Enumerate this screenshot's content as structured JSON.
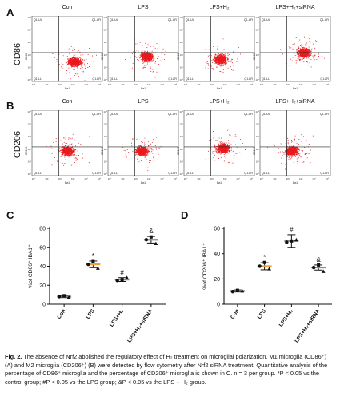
{
  "panels": {
    "A": {
      "letter": "A",
      "row_label": "CD86",
      "y_axis": "CD86"
    },
    "B": {
      "letter": "B",
      "row_label": "CD206",
      "y_axis": "CD206"
    },
    "C": {
      "letter": "C"
    },
    "D": {
      "letter": "D"
    }
  },
  "column_titles": [
    "Con",
    "LPS",
    "LPS+H₂",
    "LPS+H₂+siRNA"
  ],
  "flow": {
    "x_axis_label": "Iba1",
    "quadrants": [
      "Q1-UL",
      "Q1-UR",
      "Q1-LL",
      "Q1-LR"
    ],
    "tick_labels": [
      "10⁵",
      "10⁴",
      "10³",
      "10²",
      "10¹",
      "10⁰"
    ],
    "dot_color": "#e8191e"
  },
  "chart_data": [
    {
      "type": "scatter",
      "panel": "C",
      "ylabel": "%of CD86⁺ IBA1⁺",
      "ylim": [
        0,
        80
      ],
      "yticks": [
        "0",
        "20",
        "40",
        "60",
        "80"
      ],
      "categories": [
        "Con",
        "LPS",
        "LPS+H₂",
        "LPS+H₂+siRNA"
      ],
      "points": [
        [
          8,
          9,
          7.5
        ],
        [
          42,
          45,
          38
        ],
        [
          25,
          26,
          28
        ],
        [
          68,
          71,
          64
        ]
      ],
      "means": [
        8,
        42,
        26,
        68
      ],
      "sd": [
        1,
        3.5,
        2,
        3.5
      ],
      "annotations": [
        "",
        "*",
        "#",
        "&"
      ],
      "colors": [
        "#8a8a8a",
        "#e8a13a",
        "#8a8a8a",
        "#8a8a8a"
      ]
    },
    {
      "type": "scatter",
      "panel": "D",
      "ylabel": "%of CD206⁺ IBA1⁺",
      "ylim": [
        0,
        60
      ],
      "yticks": [
        "0",
        "20",
        "40",
        "60"
      ],
      "categories": [
        "Con",
        "LPS",
        "LPS+H₂",
        "LPS+H₂+siRNA"
      ],
      "points": [
        [
          10,
          11,
          10.5
        ],
        [
          30,
          33,
          28
        ],
        [
          49,
          50,
          51
        ],
        [
          29,
          31,
          26
        ]
      ],
      "means": [
        10.5,
        30,
        50,
        29
      ],
      "sd": [
        0.8,
        2.8,
        5,
        2
      ],
      "annotations": [
        "",
        "*",
        "#",
        "&"
      ],
      "colors": [
        "#8a8a8a",
        "#e8a13a",
        "#8a8a8a",
        "#8a8a8a"
      ]
    }
  ],
  "caption": {
    "fig_label": "Fig. 2.",
    "text": " The absence of Nrf2 abolished the regulatory effect of H₂ treatment on microglial polarization. M1 microglia (CD86⁺) (A) and M2 microglia (CD206⁺) (B) were detected by flow cytometry after Nrf2 siRNA treatment. Quantitative analysis of the percentage of CD86⁺ microglia and the percentage of CD206⁺ microglia is shown in C. n = 3 per group. *P < 0.05 vs the control group; #P < 0.05 vs the LPS group; &P < 0.05 vs the LPS + H₂ group."
  }
}
